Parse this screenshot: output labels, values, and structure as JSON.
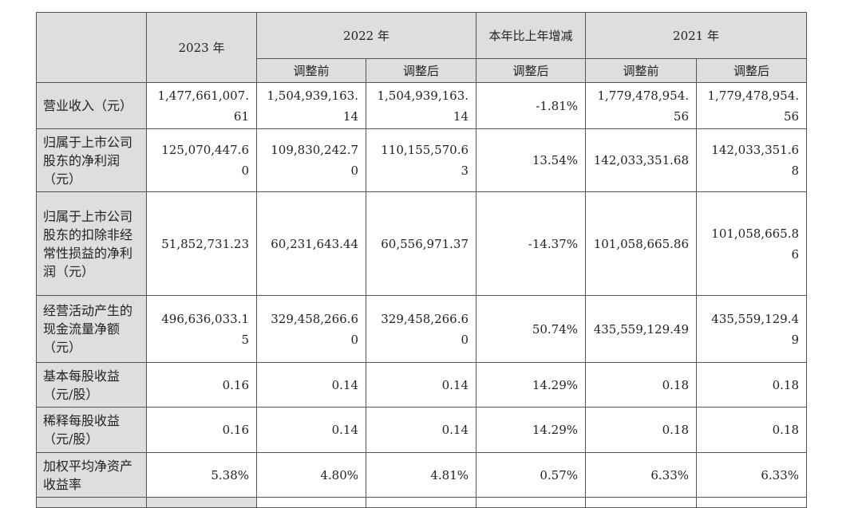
{
  "header": {
    "year_2023": "2023 年",
    "year_2022": "2022 年",
    "change": "本年比上年增减",
    "year_2021": "2021 年",
    "before_adjust": "调整前",
    "after_adjust": "调整后"
  },
  "rows": [
    {
      "label": "营业收入（元）",
      "v2023": "1,477,661,007.61",
      "v2022_before": "1,504,939,163.14",
      "v2022_after": "1,504,939,163.14",
      "change": "-1.81%",
      "v2021_before": "1,779,478,954.56",
      "v2021_after": "1,779,478,954.56"
    },
    {
      "label": "归属于上市公司股东的净利润（元）",
      "v2023": "125,070,447.60",
      "v2022_before": "109,830,242.70",
      "v2022_after": "110,155,570.63",
      "change": "13.54%",
      "v2021_before": "142,033,351.68",
      "v2021_after": "142,033,351.68"
    },
    {
      "label": "归属于上市公司股东的扣除非经常性损益的净利润（元）",
      "v2023": "51,852,731.23",
      "v2022_before": "60,231,643.44",
      "v2022_after": "60,556,971.37",
      "change": "-14.37%",
      "v2021_before": "101,058,665.86",
      "v2021_after": "101,058,665.86"
    },
    {
      "label": "经营活动产生的现金流量净额（元）",
      "v2023": "496,636,033.15",
      "v2022_before": "329,458,266.60",
      "v2022_after": "329,458,266.60",
      "change": "50.74%",
      "v2021_before": "435,559,129.49",
      "v2021_after": "435,559,129.49"
    },
    {
      "label": "基本每股收益（元/股）",
      "v2023": "0.16",
      "v2022_before": "0.14",
      "v2022_after": "0.14",
      "change": "14.29%",
      "v2021_before": "0.18",
      "v2021_after": "0.18"
    },
    {
      "label": "稀释每股收益（元/股）",
      "v2023": "0.16",
      "v2022_before": "0.14",
      "v2022_after": "0.14",
      "change": "14.29%",
      "v2021_before": "0.18",
      "v2021_after": "0.18"
    },
    {
      "label": "加权平均净资产收益率",
      "v2023": "5.38%",
      "v2022_before": "4.80%",
      "v2022_after": "4.81%",
      "change": "0.57%",
      "v2021_before": "6.33%",
      "v2021_after": "6.33%"
    }
  ]
}
